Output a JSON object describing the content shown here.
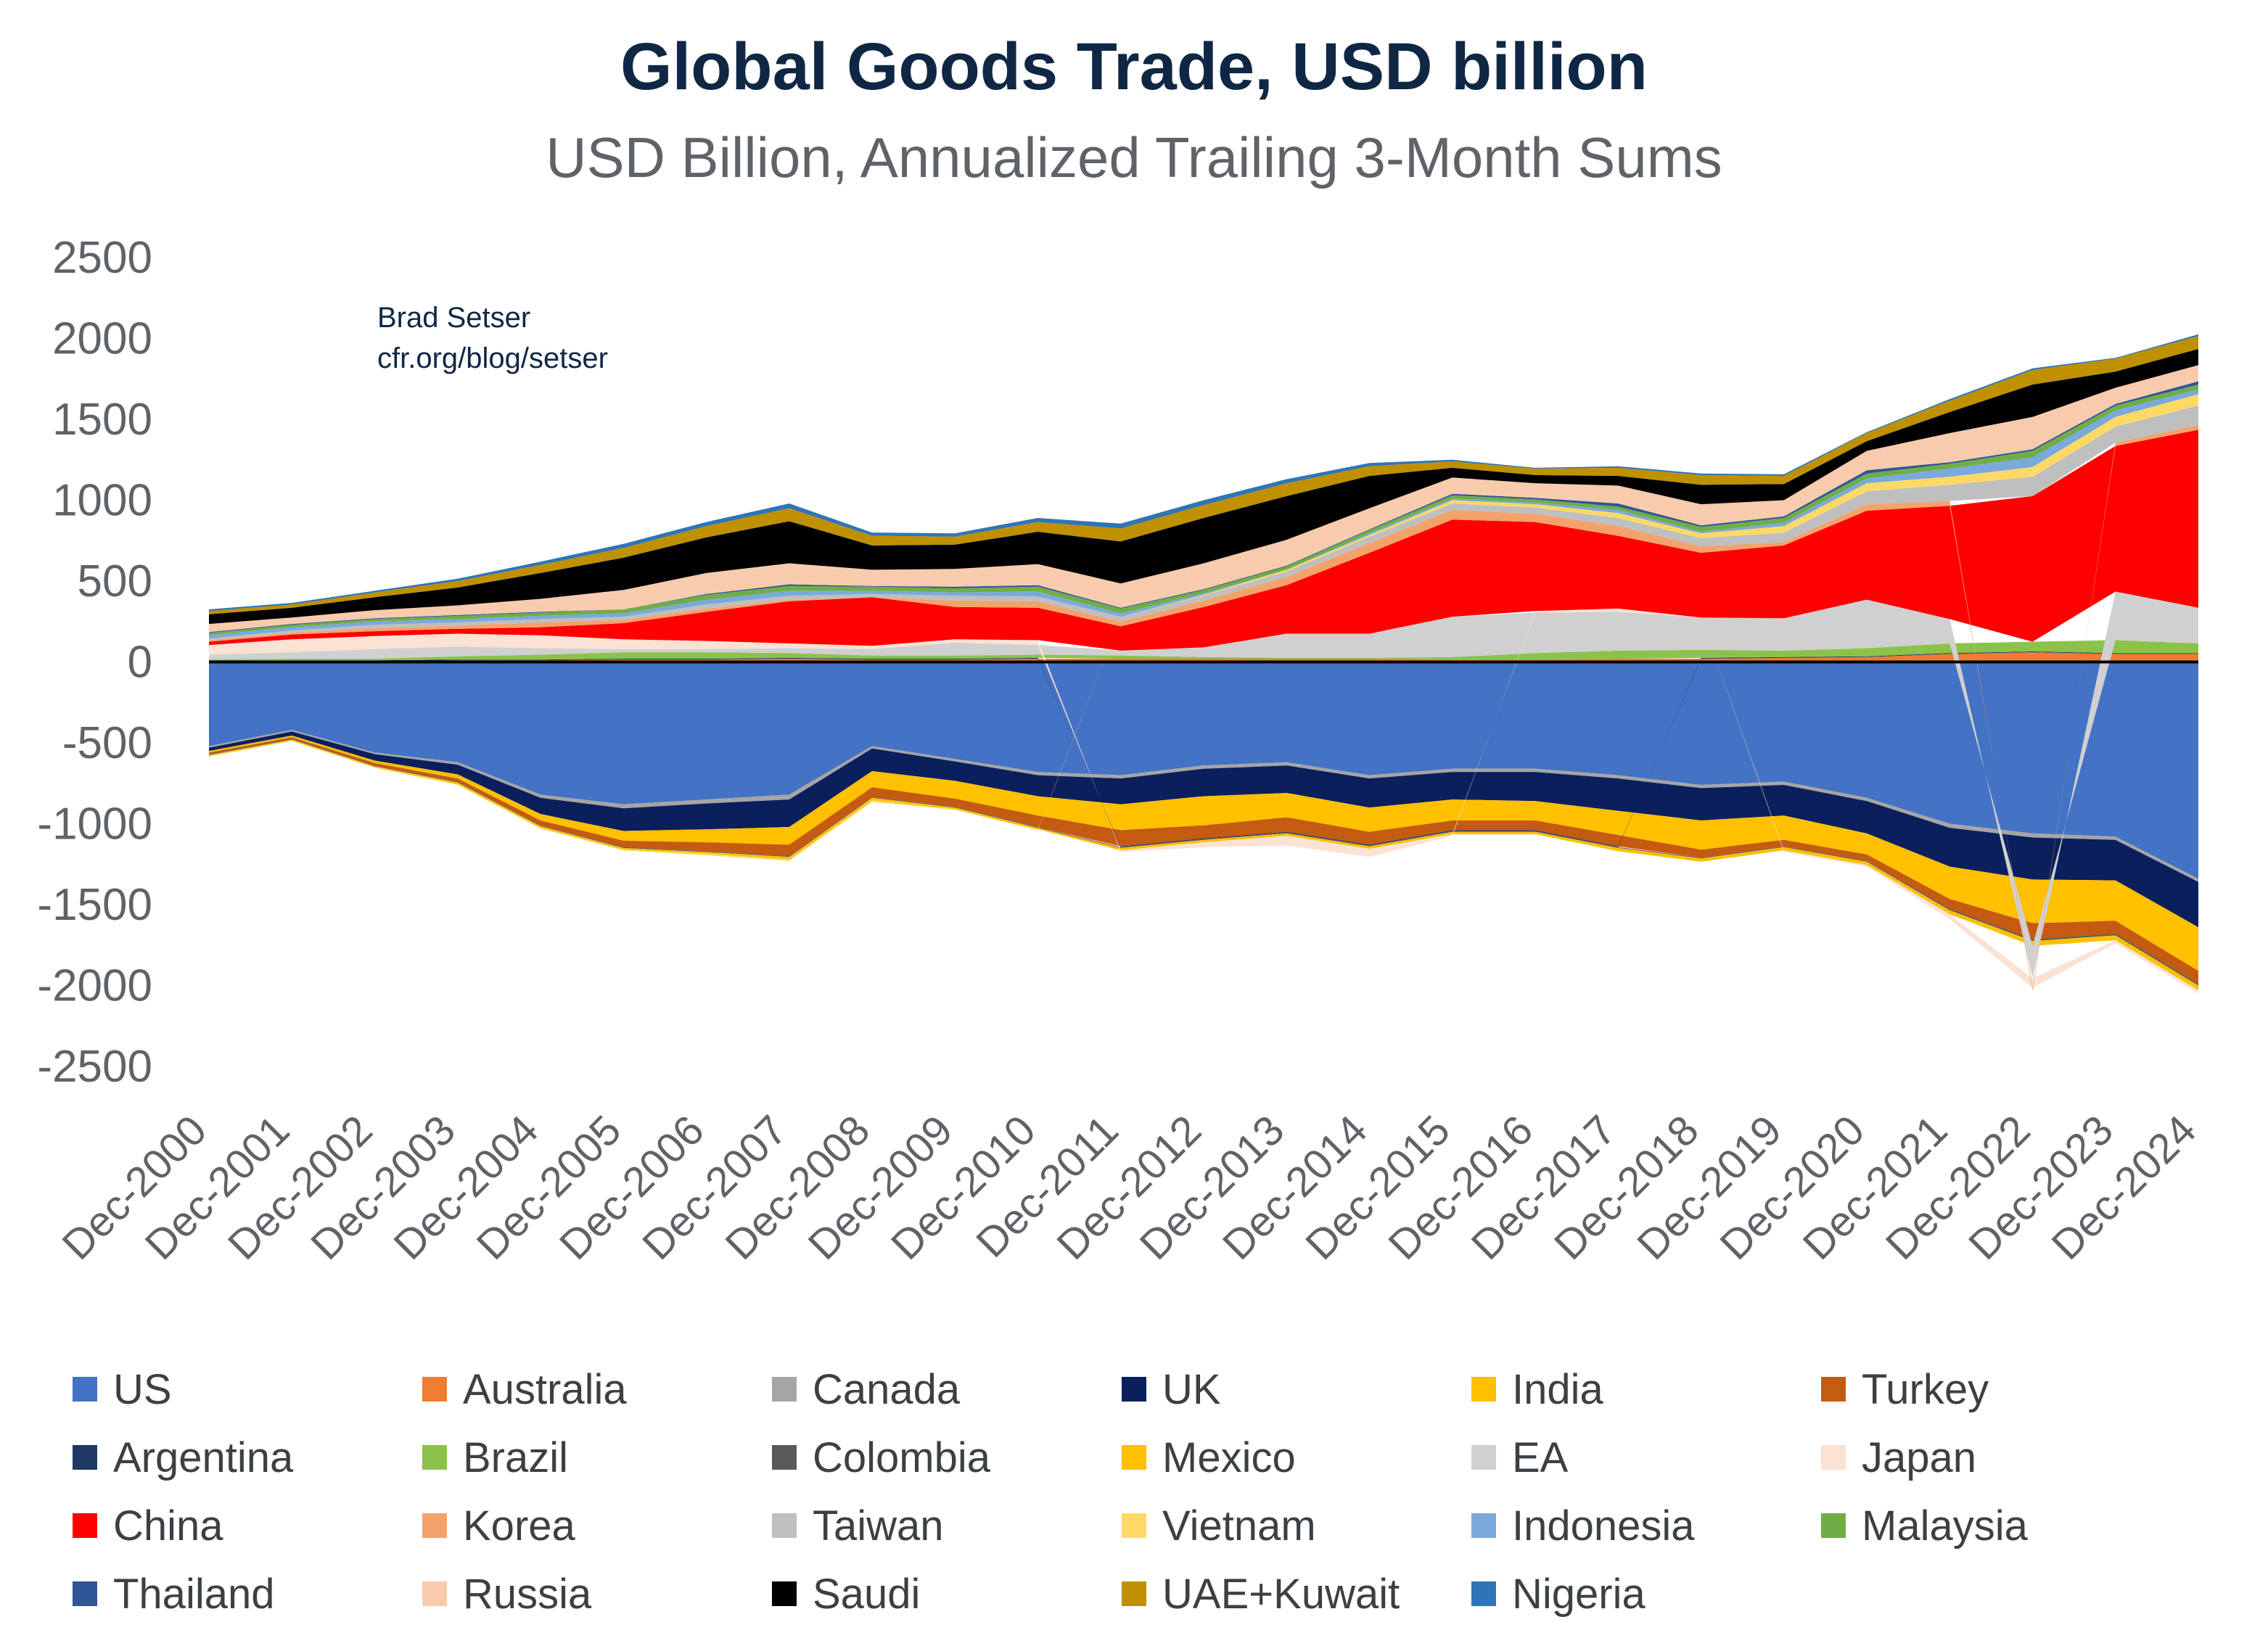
{
  "title": "Global Goods Trade, USD billion",
  "subtitle": "USD Billion, Annualized Trailing 3-Month Sums",
  "credit": {
    "line1": "Brad Setser",
    "line2": "cfr.org/blog/setser"
  },
  "chart_data": {
    "type": "area",
    "stacked": true,
    "x": [
      "Dec-2000",
      "Dec-2001",
      "Dec-2002",
      "Dec-2003",
      "Dec-2004",
      "Dec-2005",
      "Dec-2006",
      "Dec-2007",
      "Dec-2008",
      "Dec-2009",
      "Dec-2010",
      "Dec-2011",
      "Dec-2012",
      "Dec-2013",
      "Dec-2014",
      "Dec-2015",
      "Dec-2016",
      "Dec-2017",
      "Dec-2018",
      "Dec-2019",
      "Dec-2020",
      "Dec-2021",
      "Dec-2022",
      "Dec-2023",
      "Dec-2024"
    ],
    "ylim": [
      -2500,
      2500
    ],
    "yticks": [
      2500,
      2000,
      1500,
      1000,
      500,
      0,
      -500,
      -1000,
      -1500,
      -2000,
      -2500
    ],
    "legend_position": "bottom",
    "series": [
      {
        "name": "US",
        "color": "#4472c4",
        "values": [
          -520,
          -420,
          -560,
          -620,
          -820,
          -880,
          -850,
          -820,
          -520,
          -600,
          -680,
          -700,
          -640,
          -620,
          -700,
          -660,
          -660,
          -700,
          -760,
          -740,
          -840,
          -1000,
          -1060,
          -1080,
          -1340
        ]
      },
      {
        "name": "Australia",
        "color": "#ed7d31",
        "values": [
          5,
          5,
          5,
          10,
          10,
          15,
          15,
          20,
          15,
          15,
          20,
          20,
          20,
          20,
          20,
          15,
          15,
          20,
          20,
          25,
          30,
          50,
          60,
          50,
          50
        ]
      },
      {
        "name": "Canada",
        "color": "#a5a5a5",
        "values": [
          -10,
          -10,
          -10,
          -15,
          -20,
          -25,
          -25,
          -30,
          -15,
          -15,
          -20,
          -20,
          -20,
          -20,
          -20,
          -20,
          -20,
          -20,
          -20,
          -20,
          -20,
          -25,
          -25,
          -20,
          -20
        ]
      },
      {
        "name": "UK",
        "color": "#0a1f5c",
        "values": [
          -20,
          -25,
          -40,
          -60,
          -100,
          -140,
          -160,
          -170,
          -140,
          -120,
          -130,
          -160,
          -170,
          -170,
          -180,
          -170,
          -180,
          -200,
          -200,
          -190,
          -200,
          -240,
          -260,
          -250,
          -280
        ]
      },
      {
        "name": "India",
        "color": "#ffc000",
        "values": [
          -10,
          -10,
          -15,
          -25,
          -40,
          -60,
          -80,
          -110,
          -100,
          -110,
          -120,
          -160,
          -180,
          -150,
          -150,
          -130,
          -120,
          -150,
          -180,
          -150,
          -130,
          -200,
          -270,
          -250,
          -270
        ]
      },
      {
        "name": "Turkey",
        "color": "#c55a11",
        "values": [
          -10,
          -10,
          -15,
          -20,
          -30,
          -40,
          -55,
          -70,
          -60,
          -50,
          -70,
          -100,
          -80,
          -90,
          -80,
          -60,
          -60,
          -70,
          -50,
          -40,
          -40,
          -60,
          -100,
          -80,
          -80
        ]
      },
      {
        "name": "Argentina",
        "color": "#203864",
        "values": [
          5,
          5,
          5,
          5,
          5,
          5,
          5,
          5,
          5,
          5,
          5,
          -5,
          -5,
          -5,
          -5,
          -5,
          -5,
          -5,
          5,
          5,
          5,
          5,
          5,
          5,
          5
        ]
      },
      {
        "name": "Brazil",
        "color": "#8bc34a",
        "values": [
          5,
          10,
          10,
          20,
          30,
          40,
          40,
          30,
          20,
          20,
          20,
          20,
          10,
          5,
          5,
          15,
          40,
          50,
          50,
          40,
          50,
          60,
          60,
          80,
          60
        ]
      },
      {
        "name": "Colombia",
        "color": "#595959",
        "values": [
          -5,
          -5,
          -5,
          -5,
          -5,
          -5,
          -5,
          -5,
          -5,
          -5,
          -5,
          -5,
          -5,
          -5,
          -5,
          -5,
          -5,
          -5,
          -5,
          -5,
          -5,
          -10,
          -10,
          -10,
          -10
        ]
      },
      {
        "name": "Mexico",
        "color": "#ffc000",
        "values": [
          -5,
          -5,
          -5,
          -10,
          -10,
          -10,
          -10,
          -15,
          -15,
          -10,
          -10,
          -15,
          -15,
          -15,
          -15,
          -15,
          -15,
          -20,
          -20,
          -20,
          -20,
          -25,
          -30,
          -30,
          -30
        ]
      },
      {
        "name": "EA",
        "color": "#d0d0d0",
        "values": [
          30,
          40,
          60,
          60,
          40,
          20,
          20,
          30,
          40,
          80,
          60,
          30,
          60,
          150,
          150,
          250,
          250,
          240,
          200,
          200,
          300,
          150,
          -200,
          300,
          220
        ]
      },
      {
        "name": "Japan",
        "color": "#fbe2d5",
        "values": [
          60,
          80,
          80,
          80,
          80,
          60,
          50,
          30,
          20,
          20,
          30,
          -10,
          -30,
          -60,
          -50,
          -10,
          10,
          20,
          0,
          -10,
          -10,
          -30,
          -60,
          -20,
          -20
        ]
      },
      {
        "name": "China",
        "color": "#ff0000",
        "values": [
          20,
          30,
          30,
          30,
          50,
          100,
          180,
          260,
          300,
          200,
          200,
          150,
          250,
          300,
          500,
          600,
          550,
          450,
          400,
          450,
          550,
          700,
          900,
          900,
          1100
        ]
      },
      {
        "name": "Korea",
        "color": "#f4a26b",
        "values": [
          10,
          10,
          20,
          20,
          30,
          20,
          20,
          10,
          0,
          40,
          40,
          30,
          40,
          50,
          60,
          60,
          50,
          60,
          40,
          20,
          40,
          30,
          -20,
          20,
          30
        ]
      },
      {
        "name": "Taiwan",
        "color": "#bfbfbf",
        "values": [
          10,
          15,
          20,
          20,
          20,
          20,
          25,
          25,
          20,
          30,
          30,
          30,
          30,
          35,
          40,
          40,
          40,
          50,
          50,
          60,
          80,
          100,
          120,
          100,
          120
        ]
      },
      {
        "name": "Vietnam",
        "color": "#ffd966",
        "values": [
          -5,
          -5,
          -5,
          -5,
          -5,
          -5,
          -10,
          -10,
          -10,
          -5,
          -5,
          0,
          5,
          10,
          10,
          20,
          20,
          30,
          30,
          40,
          50,
          50,
          60,
          60,
          70
        ]
      },
      {
        "name": "Indonesia",
        "color": "#7aa9dc",
        "values": [
          20,
          20,
          20,
          20,
          20,
          20,
          30,
          30,
          20,
          20,
          30,
          20,
          10,
          0,
          10,
          10,
          10,
          20,
          10,
          20,
          30,
          50,
          60,
          40,
          30
        ]
      },
      {
        "name": "Malaysia",
        "color": "#70ad47",
        "values": [
          15,
          15,
          15,
          20,
          20,
          25,
          30,
          30,
          25,
          25,
          30,
          30,
          20,
          20,
          20,
          20,
          20,
          20,
          30,
          30,
          30,
          30,
          40,
          30,
          30
        ]
      },
      {
        "name": "Thailand",
        "color": "#2f5597",
        "values": [
          5,
          5,
          5,
          5,
          5,
          0,
          5,
          10,
          5,
          10,
          10,
          5,
          5,
          5,
          5,
          10,
          10,
          20,
          10,
          10,
          20,
          10,
          10,
          10,
          20
        ]
      },
      {
        "name": "Russia",
        "color": "#f8cbad",
        "values": [
          50,
          40,
          50,
          60,
          80,
          120,
          130,
          130,
          100,
          110,
          130,
          150,
          160,
          160,
          130,
          100,
          90,
          110,
          130,
          100,
          120,
          180,
          200,
          100,
          100
        ]
      },
      {
        "name": "Saudi",
        "color": "#000000",
        "values": [
          60,
          60,
          80,
          110,
          160,
          200,
          220,
          260,
          150,
          150,
          200,
          260,
          280,
          270,
          200,
          60,
          50,
          60,
          120,
          100,
          60,
          130,
          200,
          100,
          100
        ]
      },
      {
        "name": "UAE+Kuwait",
        "color": "#bf9000",
        "values": [
          20,
          20,
          30,
          40,
          50,
          60,
          70,
          80,
          60,
          50,
          60,
          80,
          80,
          80,
          60,
          40,
          40,
          50,
          60,
          50,
          50,
          70,
          90,
          80,
          80
        ]
      },
      {
        "name": "Nigeria",
        "color": "#2e75b6",
        "values": [
          10,
          10,
          10,
          15,
          20,
          25,
          25,
          30,
          20,
          20,
          25,
          30,
          30,
          25,
          20,
          10,
          5,
          10,
          10,
          10,
          5,
          10,
          10,
          5,
          10
        ]
      }
    ]
  }
}
